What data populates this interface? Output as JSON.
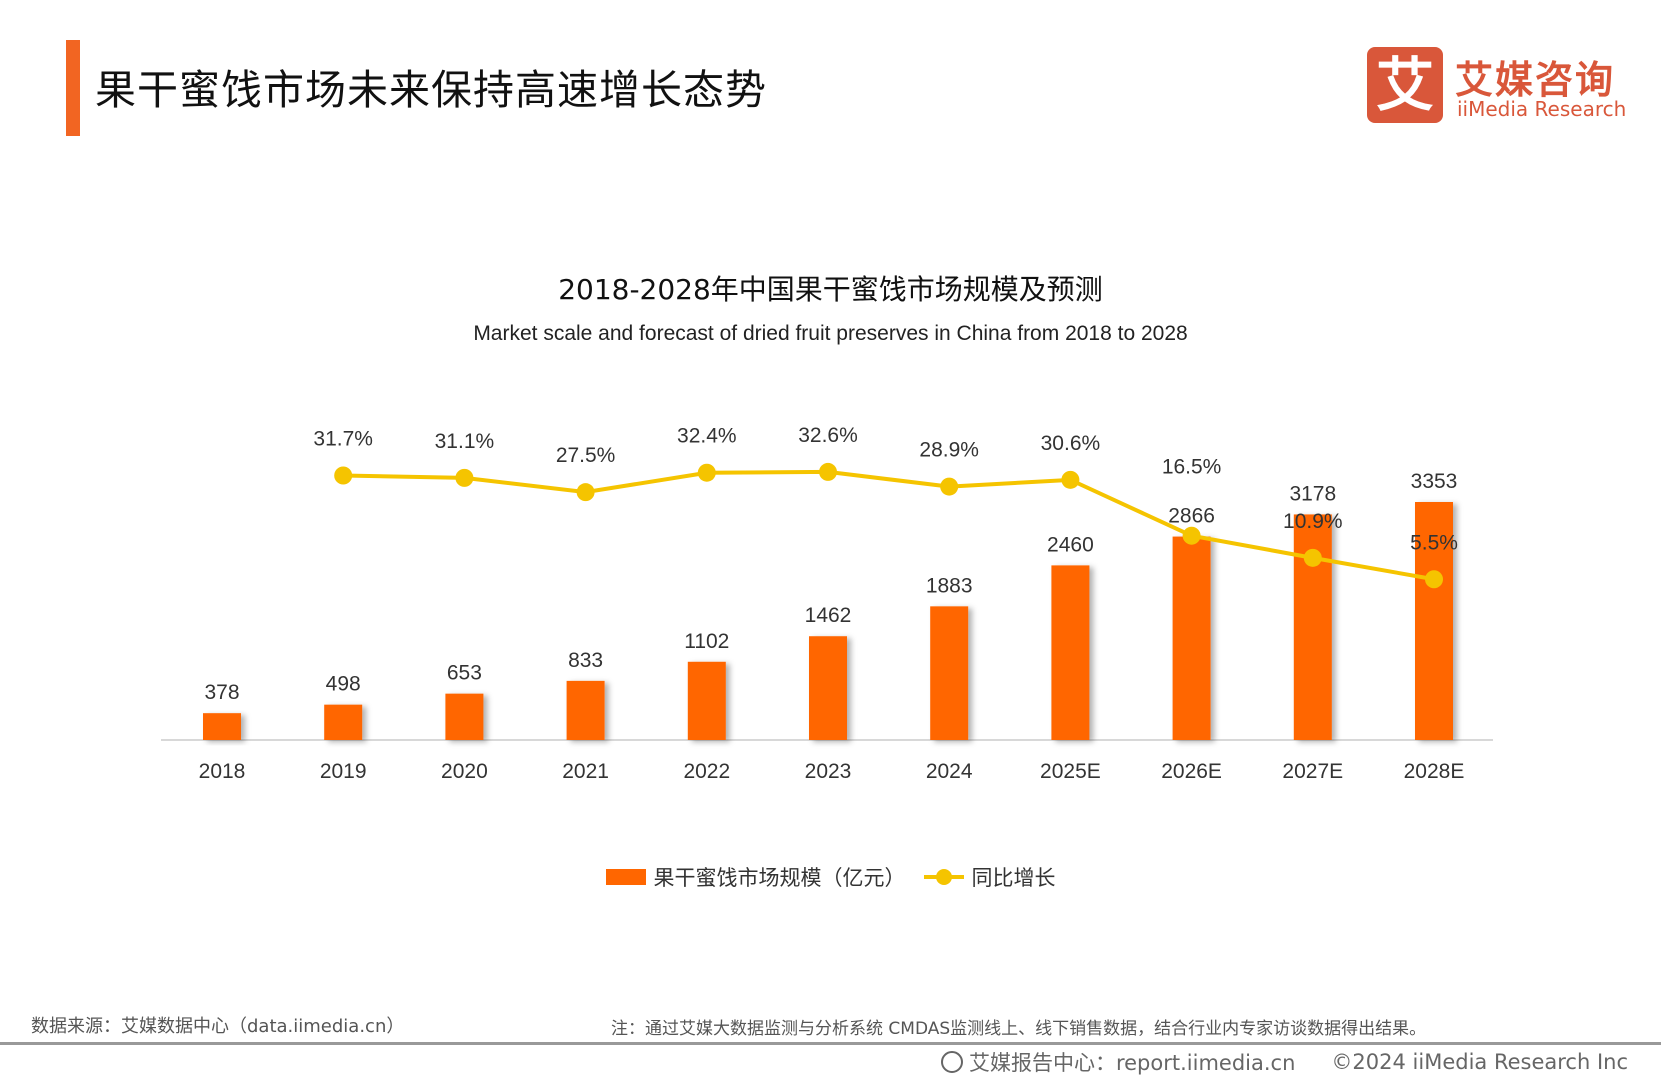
{
  "header": {
    "title": "果干蜜饯市场未来保持高速增长态势"
  },
  "logo": {
    "mark": "艾",
    "cn": "艾媒咨询",
    "en": "iiMedia Research",
    "color": "#D9573A"
  },
  "chart_data": {
    "type": "bar+line",
    "title": "2018-2028年中国果干蜜饯市场规模及预测",
    "subtitle": "Market scale and forecast of dried fruit preserves in China from 2018 to 2028",
    "categories": [
      "2018",
      "2019",
      "2020",
      "2021",
      "2022",
      "2023",
      "2024",
      "2025E",
      "2026E",
      "2027E",
      "2028E"
    ],
    "series": [
      {
        "name": "果干蜜饯市场规模（亿元）",
        "type": "bar",
        "color": "#FF6600",
        "values": [
          378,
          498,
          653,
          833,
          1102,
          1462,
          1883,
          2460,
          2866,
          3178,
          3353
        ]
      },
      {
        "name": "同比增长",
        "type": "line",
        "color": "#F5C400",
        "unit": "%",
        "values": [
          null,
          31.7,
          31.1,
          27.5,
          32.4,
          32.6,
          28.9,
          30.6,
          16.5,
          10.9,
          5.5
        ]
      }
    ],
    "grid": false,
    "legend": "bottom"
  },
  "footer": {
    "source": "数据来源：艾媒数据中心（data.iimedia.cn）",
    "note": "注：通过艾媒大数据监测与分析系统 CMDAS监测线上、线下销售数据，结合行业内专家访谈数据得出结果。",
    "report": "艾媒报告中心：report.iimedia.cn",
    "copyright": "©2024  iiMedia Research Inc"
  }
}
